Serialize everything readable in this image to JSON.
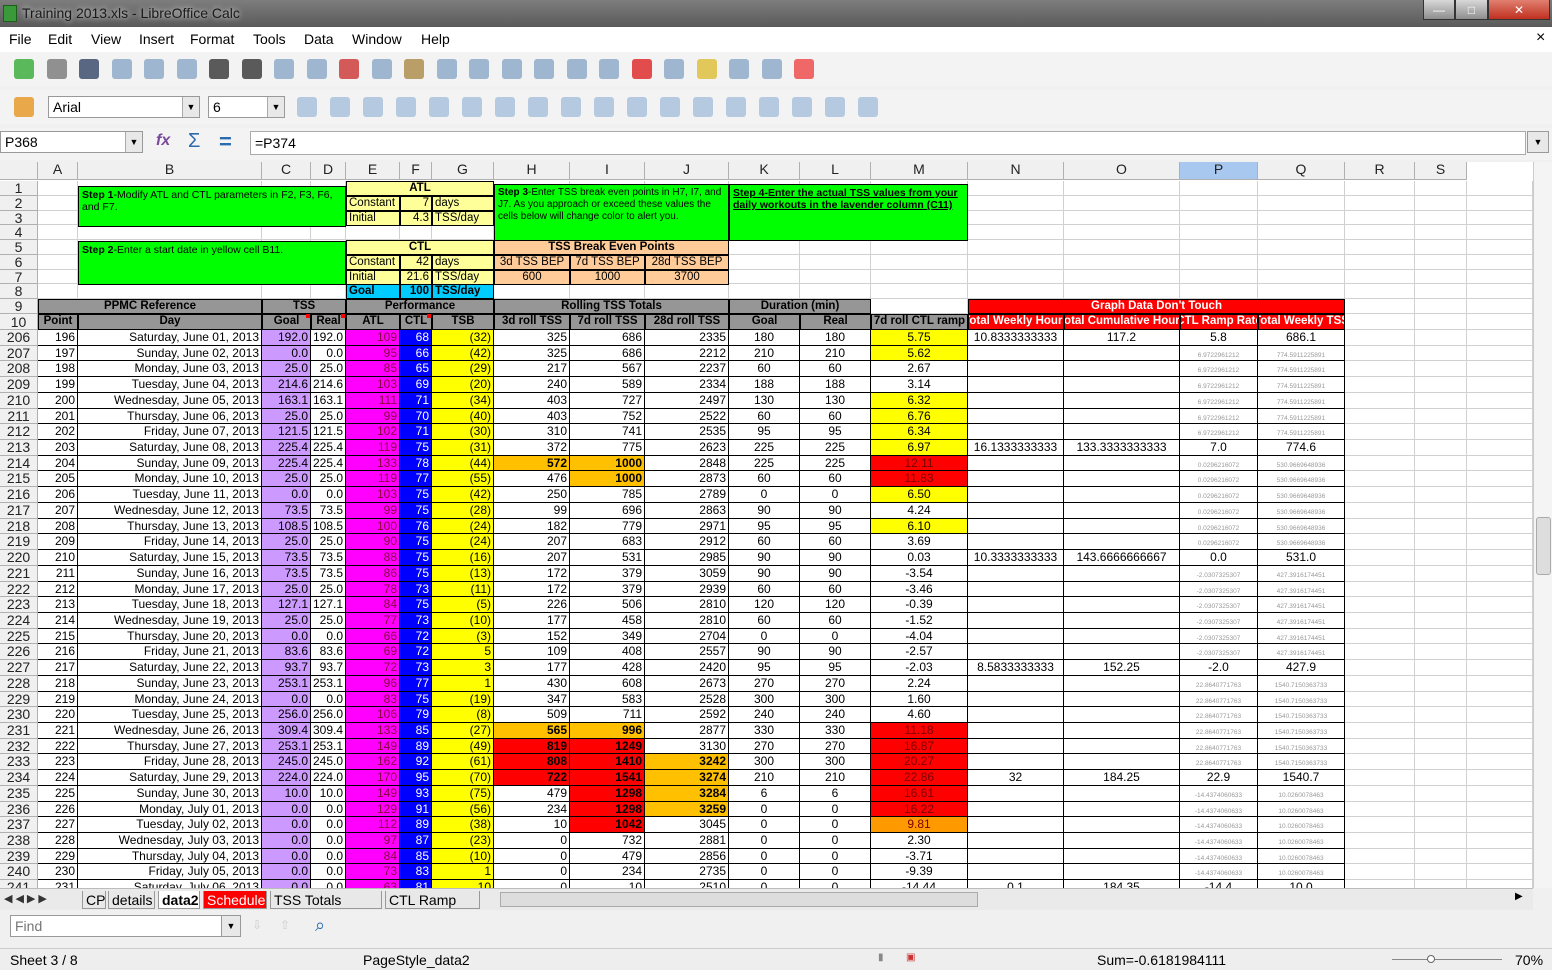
{
  "window": {
    "title": "Training 2013.xls - LibreOffice Calc",
    "minimize": "—",
    "maximize": "□",
    "close": "✕"
  },
  "menu": [
    "File",
    "Edit",
    "View",
    "Insert",
    "Format",
    "Tools",
    "Data",
    "Window",
    "Help"
  ],
  "menu_close": "×",
  "toolbar1": [
    "new-document-icon",
    "open-icon",
    "save-icon",
    "email-icon",
    "edit-mode-icon",
    "export-pdf-icon",
    "print-icon",
    "print-preview-icon",
    "spellcheck-icon",
    "autospellcheck-icon",
    "cut-icon",
    "copy-icon",
    "paste-icon",
    "clone-formatting-icon",
    "undo-icon",
    "redo-icon",
    "hyperlink-icon",
    "sort-ascending-icon",
    "sort-descending-icon",
    "chart-icon",
    "draw-functions-icon",
    "navigator-icon",
    "gallery-icon",
    "data-sources-icon",
    "help-icon"
  ],
  "formatting": {
    "font_name": "Arial",
    "font_size": "6",
    "icons": [
      "bold-icon",
      "italic-icon",
      "underline-icon",
      "align-left-icon",
      "align-center-icon",
      "align-right-icon",
      "justify-icon",
      "merge-cells-icon",
      "currency-icon",
      "percent-icon",
      "add-decimal-icon",
      "delete-decimal-icon",
      "decrease-indent-icon",
      "increase-indent-icon",
      "borders-icon",
      "background-color-icon",
      "font-color-icon",
      "grid-icon"
    ]
  },
  "formula_bar": {
    "name_box": "P368",
    "formula": "=P374",
    "function_wizard": "fx",
    "sum": "Σ",
    "equals": "="
  },
  "columns": [
    "A",
    "B",
    "C",
    "D",
    "E",
    "F",
    "G",
    "H",
    "I",
    "J",
    "K",
    "L",
    "M",
    "N",
    "O",
    "P",
    "Q",
    "R",
    "S"
  ],
  "selected_column": "P",
  "colors": {
    "lavender": "#cc99ff",
    "magenta": "#ff00ff",
    "blue": "#0000ff",
    "yellow": "#ffff00",
    "green": "#00ff00",
    "atl_yellow": "#ffff99",
    "goal_cyan": "#00ccff",
    "peach": "#ffcc99",
    "header_gray": "#969696",
    "red": "#ff0000",
    "orange": "#ffc000",
    "dark_orange": "#ff9900"
  },
  "top": {
    "step1": {
      "bold": "Step 1",
      "text": "-Modify ATL and CTL parameters in F2, F3, F6, and F7."
    },
    "step2": {
      "bold": "Step 2",
      "text": "-Enter a start date in yellow cell B11."
    },
    "step3": {
      "bold": "Step 3",
      "text": "-Enter TSS break even points in H7, I7, and J7.  As you approach or exceed these values the cells below will change color to alert you."
    },
    "step4": "Step 4-Enter the actual TSS values from your daily workouts in the lavender column (C11)",
    "atl": {
      "title": "ATL",
      "r1": [
        "Constant",
        "7",
        "days"
      ],
      "r2": [
        "Initial",
        "4.3",
        "TSS/day"
      ]
    },
    "ctl": {
      "title": "CTL",
      "r1": [
        "Constant",
        "42",
        "days"
      ],
      "r2": [
        "Initial",
        "21.6",
        "TSS/day"
      ],
      "goal": [
        "Goal",
        "100",
        "TSS/day"
      ]
    },
    "bep": {
      "title": "TSS Break Even Points",
      "headers": [
        "3d TSS BEP",
        "7d TSS BEP",
        "28d TSS BEP"
      ],
      "values": [
        "600",
        "1000",
        "3700"
      ]
    }
  },
  "groups": {
    "ppmc": "PPMC Reference",
    "tss": "TSS",
    "perf": "Performance",
    "rolling": "Rolling TSS Totals",
    "duration": "Duration (min)",
    "graph": "Graph Data Don't Touch"
  },
  "headers": [
    "Point",
    "Day",
    "Goal",
    "Real",
    "ATL",
    "CTL",
    "TSB",
    "3d roll TSS",
    "7d roll TSS",
    "28d roll TSS",
    "Goal",
    "Real",
    "7d roll CTL ramp",
    "Total Weekly Hours",
    "Total Cumulative Hours",
    "CTL Ramp Rate",
    "Total Weekly TSS"
  ],
  "rows": [
    {
      "n": "206",
      "v": [
        "196",
        "Saturday, June 01, 2013",
        "192.0",
        "192.0",
        "109",
        "68",
        "(32)",
        "325",
        "686",
        "2335",
        "180",
        "180",
        "5.75",
        "10.8333333333",
        "117.2",
        "5.8",
        "686.1"
      ],
      "fill": {
        "M": "yellow"
      }
    },
    {
      "n": "207",
      "v": [
        "197",
        "Sunday, June 02, 2013",
        "0.0",
        "0.0",
        "95",
        "66",
        "(42)",
        "325",
        "686",
        "2212",
        "210",
        "210",
        "5.62",
        "",
        "",
        "6.9722961212",
        "774.5911225891"
      ],
      "fill": {
        "M": "yellow"
      },
      "small": true
    },
    {
      "n": "208",
      "v": [
        "198",
        "Monday, June 03, 2013",
        "25.0",
        "25.0",
        "85",
        "65",
        "(29)",
        "217",
        "567",
        "2237",
        "60",
        "60",
        "2.67",
        "",
        "",
        "6.9722961212",
        "774.5911225891"
      ],
      "fill": {},
      "small": true
    },
    {
      "n": "209",
      "v": [
        "199",
        "Tuesday, June 04, 2013",
        "214.6",
        "214.6",
        "103",
        "69",
        "(20)",
        "240",
        "589",
        "2334",
        "188",
        "188",
        "3.14",
        "",
        "",
        "6.9722961212",
        "774.5911225891"
      ],
      "fill": {},
      "small": true
    },
    {
      "n": "210",
      "v": [
        "200",
        "Wednesday, June 05, 2013",
        "163.1",
        "163.1",
        "111",
        "71",
        "(34)",
        "403",
        "727",
        "2497",
        "130",
        "130",
        "6.32",
        "",
        "",
        "6.9722961212",
        "774.5911225891"
      ],
      "fill": {
        "M": "yellow"
      },
      "small": true
    },
    {
      "n": "211",
      "v": [
        "201",
        "Thursday, June 06, 2013",
        "25.0",
        "25.0",
        "99",
        "70",
        "(40)",
        "403",
        "752",
        "2522",
        "60",
        "60",
        "6.76",
        "",
        "",
        "6.9722961212",
        "774.5911225891"
      ],
      "fill": {
        "M": "yellow"
      },
      "small": true
    },
    {
      "n": "212",
      "v": [
        "202",
        "Friday, June 07, 2013",
        "121.5",
        "121.5",
        "102",
        "71",
        "(30)",
        "310",
        "741",
        "2535",
        "95",
        "95",
        "6.34",
        "",
        "",
        "6.9722961212",
        "774.5911225891"
      ],
      "fill": {
        "M": "yellow"
      },
      "small": true
    },
    {
      "n": "213",
      "v": [
        "203",
        "Saturday, June 08, 2013",
        "225.4",
        "225.4",
        "119",
        "75",
        "(31)",
        "372",
        "775",
        "2623",
        "225",
        "225",
        "6.97",
        "16.1333333333",
        "133.3333333333",
        "7.0",
        "774.6"
      ],
      "fill": {
        "M": "yellow"
      }
    },
    {
      "n": "214",
      "v": [
        "204",
        "Sunday, June 09, 2013",
        "225.4",
        "225.4",
        "133",
        "78",
        "(44)",
        "572",
        "1000",
        "2848",
        "225",
        "225",
        "12.11",
        "",
        "",
        "0.0296216072",
        "530.9669648936"
      ],
      "fill": {
        "H": "orange",
        "I": "orange",
        "M": "red"
      },
      "small": true
    },
    {
      "n": "215",
      "v": [
        "205",
        "Monday, June 10, 2013",
        "25.0",
        "25.0",
        "119",
        "77",
        "(55)",
        "476",
        "1000",
        "2873",
        "60",
        "60",
        "11.83",
        "",
        "",
        "0.0296216072",
        "530.9669648936"
      ],
      "fill": {
        "I": "orange",
        "M": "red"
      },
      "small": true
    },
    {
      "n": "216",
      "v": [
        "206",
        "Tuesday, June 11, 2013",
        "0.0",
        "0.0",
        "103",
        "75",
        "(42)",
        "250",
        "785",
        "2789",
        "0",
        "0",
        "6.50",
        "",
        "",
        "0.0296216072",
        "530.9669648936"
      ],
      "fill": {
        "M": "yellow"
      },
      "small": true
    },
    {
      "n": "217",
      "v": [
        "207",
        "Wednesday, June 12, 2013",
        "73.5",
        "73.5",
        "99",
        "75",
        "(28)",
        "99",
        "696",
        "2863",
        "90",
        "90",
        "4.24",
        "",
        "",
        "0.0296216072",
        "530.9669648936"
      ],
      "fill": {},
      "small": true
    },
    {
      "n": "218",
      "v": [
        "208",
        "Thursday, June 13, 2013",
        "108.5",
        "108.5",
        "100",
        "76",
        "(24)",
        "182",
        "779",
        "2971",
        "95",
        "95",
        "6.10",
        "",
        "",
        "0.0296216072",
        "530.9669648936"
      ],
      "fill": {
        "M": "yellow"
      },
      "small": true
    },
    {
      "n": "219",
      "v": [
        "209",
        "Friday, June 14, 2013",
        "25.0",
        "25.0",
        "90",
        "75",
        "(24)",
        "207",
        "683",
        "2912",
        "60",
        "60",
        "3.69",
        "",
        "",
        "0.0296216072",
        "530.9669648936"
      ],
      "fill": {},
      "small": true
    },
    {
      "n": "220",
      "v": [
        "210",
        "Saturday, June 15, 2013",
        "73.5",
        "73.5",
        "88",
        "75",
        "(16)",
        "207",
        "531",
        "2985",
        "90",
        "90",
        "0.03",
        "10.3333333333",
        "143.6666666667",
        "0.0",
        "531.0"
      ],
      "fill": {}
    },
    {
      "n": "221",
      "v": [
        "211",
        "Sunday, June 16, 2013",
        "73.5",
        "73.5",
        "86",
        "75",
        "(13)",
        "172",
        "379",
        "3059",
        "90",
        "90",
        "-3.54",
        "",
        "",
        "-2.0307325307",
        "427.3916174451"
      ],
      "fill": {},
      "small": true
    },
    {
      "n": "222",
      "v": [
        "212",
        "Monday, June 17, 2013",
        "25.0",
        "25.0",
        "78",
        "73",
        "(11)",
        "172",
        "379",
        "2939",
        "60",
        "60",
        "-3.46",
        "",
        "",
        "-2.0307325307",
        "427.3916174451"
      ],
      "fill": {},
      "small": true
    },
    {
      "n": "223",
      "v": [
        "213",
        "Tuesday, June 18, 2013",
        "127.1",
        "127.1",
        "84",
        "75",
        "(5)",
        "226",
        "506",
        "2810",
        "120",
        "120",
        "-0.39",
        "",
        "",
        "-2.0307325307",
        "427.3916174451"
      ],
      "fill": {},
      "small": true
    },
    {
      "n": "224",
      "v": [
        "214",
        "Wednesday, June 19, 2013",
        "25.0",
        "25.0",
        "77",
        "73",
        "(10)",
        "177",
        "458",
        "2810",
        "60",
        "60",
        "-1.52",
        "",
        "",
        "-2.0307325307",
        "427.3916174451"
      ],
      "fill": {},
      "small": true
    },
    {
      "n": "225",
      "v": [
        "215",
        "Thursday, June 20, 2013",
        "0.0",
        "0.0",
        "66",
        "72",
        "(3)",
        "152",
        "349",
        "2704",
        "0",
        "0",
        "-4.04",
        "",
        "",
        "-2.0307325307",
        "427.3916174451"
      ],
      "fill": {},
      "small": true
    },
    {
      "n": "226",
      "v": [
        "216",
        "Friday, June 21, 2013",
        "83.6",
        "83.6",
        "69",
        "72",
        "5",
        "109",
        "408",
        "2557",
        "90",
        "90",
        "-2.57",
        "",
        "",
        "-2.0307325307",
        "427.3916174451"
      ],
      "fill": {},
      "small": true
    },
    {
      "n": "227",
      "v": [
        "217",
        "Saturday, June 22, 2013",
        "93.7",
        "93.7",
        "72",
        "73",
        "3",
        "177",
        "428",
        "2420",
        "95",
        "95",
        "-2.03",
        "8.5833333333",
        "152.25",
        "-2.0",
        "427.9"
      ],
      "fill": {}
    },
    {
      "n": "228",
      "v": [
        "218",
        "Sunday, June 23, 2013",
        "253.1",
        "253.1",
        "96",
        "77",
        "1",
        "430",
        "608",
        "2673",
        "270",
        "270",
        "2.24",
        "",
        "",
        "22.8640771763",
        "1540.7150363733"
      ],
      "fill": {},
      "small": true
    },
    {
      "n": "229",
      "v": [
        "219",
        "Monday, June 24, 2013",
        "0.0",
        "0.0",
        "83",
        "75",
        "(19)",
        "347",
        "583",
        "2528",
        "300",
        "300",
        "1.60",
        "",
        "",
        "22.8640771763",
        "1540.7150363733"
      ],
      "fill": {},
      "small": true
    },
    {
      "n": "230",
      "v": [
        "220",
        "Tuesday, June 25, 2013",
        "256.0",
        "256.0",
        "106",
        "79",
        "(8)",
        "509",
        "711",
        "2592",
        "240",
        "240",
        "4.60",
        "",
        "",
        "22.8640771763",
        "1540.7150363733"
      ],
      "fill": {},
      "small": true
    },
    {
      "n": "231",
      "v": [
        "221",
        "Wednesday, June 26, 2013",
        "309.4",
        "309.4",
        "133",
        "85",
        "(27)",
        "565",
        "996",
        "2877",
        "330",
        "330",
        "11.18",
        "",
        "",
        "22.8640771763",
        "1540.7150363733"
      ],
      "fill": {
        "H": "orange",
        "I": "orange",
        "M": "red"
      },
      "small": true
    },
    {
      "n": "232",
      "v": [
        "222",
        "Thursday, June 27, 2013",
        "253.1",
        "253.1",
        "149",
        "89",
        "(49)",
        "819",
        "1249",
        "3130",
        "270",
        "270",
        "16.87",
        "",
        "",
        "22.8640771763",
        "1540.7150363733"
      ],
      "fill": {
        "H": "red",
        "I": "red",
        "M": "red"
      },
      "small": true
    },
    {
      "n": "233",
      "v": [
        "223",
        "Friday, June 28, 2013",
        "245.0",
        "245.0",
        "162",
        "92",
        "(61)",
        "808",
        "1410",
        "3242",
        "300",
        "300",
        "20.27",
        "",
        "",
        "22.8640771763",
        "1540.7150363733"
      ],
      "fill": {
        "H": "red",
        "I": "red",
        "J": "orange",
        "M": "red"
      },
      "small": true
    },
    {
      "n": "234",
      "v": [
        "224",
        "Saturday, June 29, 2013",
        "224.0",
        "224.0",
        "170",
        "95",
        "(70)",
        "722",
        "1541",
        "3274",
        "210",
        "210",
        "22.86",
        "32",
        "184.25",
        "22.9",
        "1540.7"
      ],
      "fill": {
        "H": "red",
        "I": "red",
        "J": "orange",
        "M": "red"
      }
    },
    {
      "n": "235",
      "v": [
        "225",
        "Sunday, June 30, 2013",
        "10.0",
        "10.0",
        "149",
        "93",
        "(75)",
        "479",
        "1298",
        "3284",
        "6",
        "6",
        "16.61",
        "",
        "",
        "-14.4374060633",
        "10.0260078463"
      ],
      "fill": {
        "I": "red",
        "J": "orange",
        "M": "red"
      },
      "small": true
    },
    {
      "n": "236",
      "v": [
        "226",
        "Monday, July 01, 2013",
        "0.0",
        "0.0",
        "129",
        "91",
        "(56)",
        "234",
        "1298",
        "3259",
        "0",
        "0",
        "16.22",
        "",
        "",
        "-14.4374060633",
        "10.0260078463"
      ],
      "fill": {
        "I": "red",
        "J": "orange",
        "M": "red"
      },
      "small": true
    },
    {
      "n": "237",
      "v": [
        "227",
        "Tuesday, July 02, 2013",
        "0.0",
        "0.0",
        "112",
        "89",
        "(38)",
        "10",
        "1042",
        "3045",
        "0",
        "0",
        "9.81",
        "",
        "",
        "-14.4374060633",
        "10.0260078463"
      ],
      "fill": {
        "I": "red",
        "M": "dark_orange"
      },
      "small": true
    },
    {
      "n": "238",
      "v": [
        "228",
        "Wednesday, July 03, 2013",
        "0.0",
        "0.0",
        "97",
        "87",
        "(23)",
        "0",
        "732",
        "2881",
        "0",
        "0",
        "2.30",
        "",
        "",
        "-14.4374060633",
        "10.0260078463"
      ],
      "fill": {},
      "small": true
    },
    {
      "n": "239",
      "v": [
        "229",
        "Thursday, July 04, 2013",
        "0.0",
        "0.0",
        "84",
        "85",
        "(10)",
        "0",
        "479",
        "2856",
        "0",
        "0",
        "-3.71",
        "",
        "",
        "-14.4374060633",
        "10.0260078463"
      ],
      "fill": {},
      "small": true
    },
    {
      "n": "240",
      "v": [
        "230",
        "Friday, July 05, 2013",
        "0.0",
        "0.0",
        "73",
        "83",
        "1",
        "0",
        "234",
        "2735",
        "0",
        "0",
        "-9.39",
        "",
        "",
        "-14.4374060633",
        "10.0260078463"
      ],
      "fill": {},
      "small": true
    },
    {
      "n": "241",
      "v": [
        "231",
        "Saturday, July 06, 2013",
        "0.0",
        "0.0",
        "63",
        "81",
        "10",
        "0",
        "10",
        "2510",
        "0",
        "0",
        "-14.44",
        "0.1",
        "184.35",
        "-14.4",
        "10.0"
      ],
      "fill": {}
    }
  ],
  "sheet_tabs": [
    {
      "label": "CP"
    },
    {
      "label": "details"
    },
    {
      "label": "data2",
      "active": true
    },
    {
      "label": "Schedule",
      "color": "#ff0000"
    },
    {
      "label": "TSS Totals Chart"
    },
    {
      "label": "CTL Ramp Rat"
    }
  ],
  "find": {
    "placeholder": "Find"
  },
  "status": {
    "sheet": "Sheet 3 / 8",
    "page_style": "PageStyle_data2",
    "sum": "Sum=-0.6181984111",
    "zoom": "70%",
    "zoom_level": 70
  }
}
